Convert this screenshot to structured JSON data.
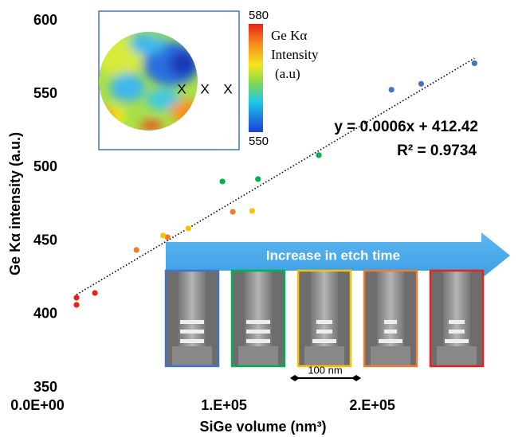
{
  "chart_data": {
    "type": "scatter",
    "x_title": "SiGe volume (nm³)",
    "y_title": "Ge Kα intensity (a.u.)",
    "xlim": [
      -25000,
      280000
    ],
    "ylim": [
      350,
      600
    ],
    "xticks": [
      {
        "value": 0,
        "label": "0.0E+00"
      },
      {
        "value": 100000,
        "label": "1.E+05"
      },
      {
        "value": 200000,
        "label": "2.E+05"
      }
    ],
    "yticks": [
      350,
      400,
      450,
      500,
      550,
      600
    ],
    "series": [
      {
        "color": "#e8231a",
        "x": [
          1600,
          1600,
          14000
        ],
        "values": [
          411.3,
          406.4,
          414.5
        ]
      },
      {
        "color": "#ed7d31",
        "x": [
          42000,
          63000,
          107000
        ],
        "values": [
          443.8,
          452.5,
          469.8
        ]
      },
      {
        "color": "#ffc000",
        "x": [
          60000,
          77000,
          120000
        ],
        "values": [
          453.6,
          458.5,
          470.4
        ]
      },
      {
        "color": "#00b050",
        "x": [
          100000,
          124000,
          165000
        ],
        "values": [
          490.5,
          492.1,
          508.4
        ]
      },
      {
        "color": "#4472c4",
        "x": [
          214000,
          234000,
          270000
        ],
        "values": [
          553,
          557,
          571
        ]
      }
    ],
    "trendline": {
      "equation": "y = 0.0006x + 412.42",
      "r2": "R² = 0.9734",
      "slope": 0.0006,
      "intercept": 412.42
    },
    "inset": {
      "colorbar_ticks": [
        580,
        550
      ],
      "colorbar_label": [
        "Ge Kα",
        "Intensity",
        "(a.u)"
      ],
      "marks": [
        "X",
        "X",
        "X"
      ]
    },
    "arrow_label": "Increase in etch time",
    "scale_bar": "100 nm"
  }
}
